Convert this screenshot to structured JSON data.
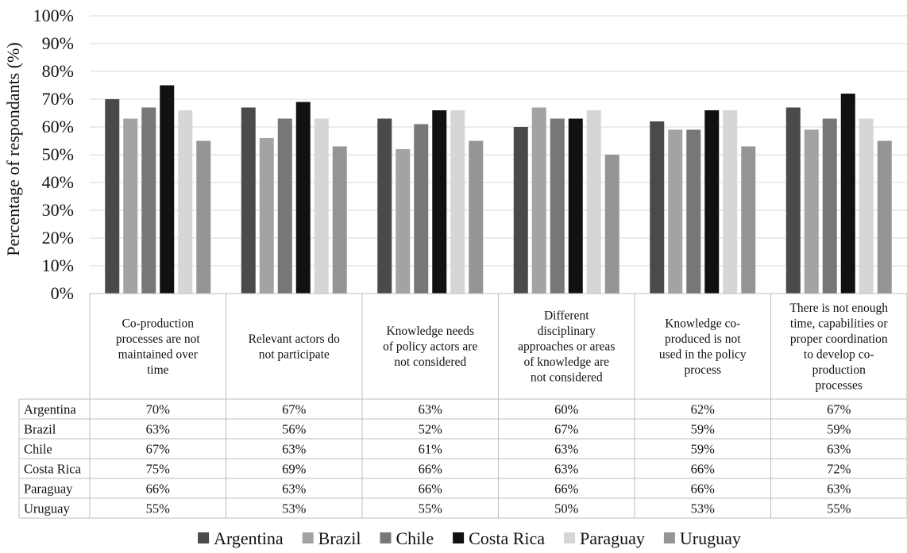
{
  "chart_data": {
    "type": "bar",
    "ylabel": "Percentage of respondants (%)",
    "ylim": [
      0,
      100
    ],
    "ytick_labels": [
      "0%",
      "10%",
      "20%",
      "30%",
      "40%",
      "50%",
      "60%",
      "70%",
      "80%",
      "90%",
      "100%"
    ],
    "grid": true,
    "legend_position": "bottom",
    "categories": [
      "Co-production processes are not maintained over time",
      "Relevant actors do not participate",
      "Knowledge needs of policy actors are not considered",
      "Different disciplinary approaches or areas of knowledge are not considered",
      "Knowledge co-produced is not used in the policy process",
      "There is not enough time, capabilities or proper coordination to develop co-production processes"
    ],
    "category_lines": [
      [
        "Co-production",
        "processes are not",
        "maintained over",
        "time"
      ],
      [
        "Relevant actors do",
        "not participate"
      ],
      [
        "Knowledge needs",
        "of policy actors are",
        "not considered"
      ],
      [
        "Different",
        "disciplinary",
        "approaches or areas",
        "of knowledge are",
        "not considered"
      ],
      [
        "Knowledge co-",
        "produced is not",
        "used in the policy",
        "process"
      ],
      [
        "There is not enough",
        "time, capabilities or",
        "proper coordination",
        "to develop co-",
        "production",
        "processes"
      ]
    ],
    "series": [
      {
        "name": "Argentina",
        "color": "#4a4a4a",
        "values": [
          70,
          67,
          63,
          60,
          62,
          67
        ],
        "labels": [
          "70%",
          "67%",
          "63%",
          "60%",
          "62%",
          "67%"
        ]
      },
      {
        "name": "Brazil",
        "color": "#a3a3a3",
        "values": [
          63,
          56,
          52,
          67,
          59,
          59
        ],
        "labels": [
          "63%",
          "56%",
          "52%",
          "67%",
          "59%",
          "59%"
        ]
      },
      {
        "name": "Chile",
        "color": "#777777",
        "values": [
          67,
          63,
          61,
          63,
          59,
          63
        ],
        "labels": [
          "67%",
          "63%",
          "61%",
          "63%",
          "59%",
          "63%"
        ]
      },
      {
        "name": "Costa Rica",
        "color": "#111111",
        "values": [
          75,
          69,
          66,
          63,
          66,
          72
        ],
        "labels": [
          "75%",
          "69%",
          "66%",
          "63%",
          "66%",
          "72%"
        ]
      },
      {
        "name": "Paraguay",
        "color": "#d6d6d6",
        "values": [
          66,
          63,
          66,
          66,
          66,
          63
        ],
        "labels": [
          "66%",
          "63%",
          "66%",
          "66%",
          "66%",
          "63%"
        ]
      },
      {
        "name": "Uruguay",
        "color": "#959595",
        "values": [
          55,
          53,
          55,
          50,
          53,
          55
        ],
        "labels": [
          "55%",
          "53%",
          "55%",
          "50%",
          "53%",
          "55%"
        ]
      }
    ]
  }
}
